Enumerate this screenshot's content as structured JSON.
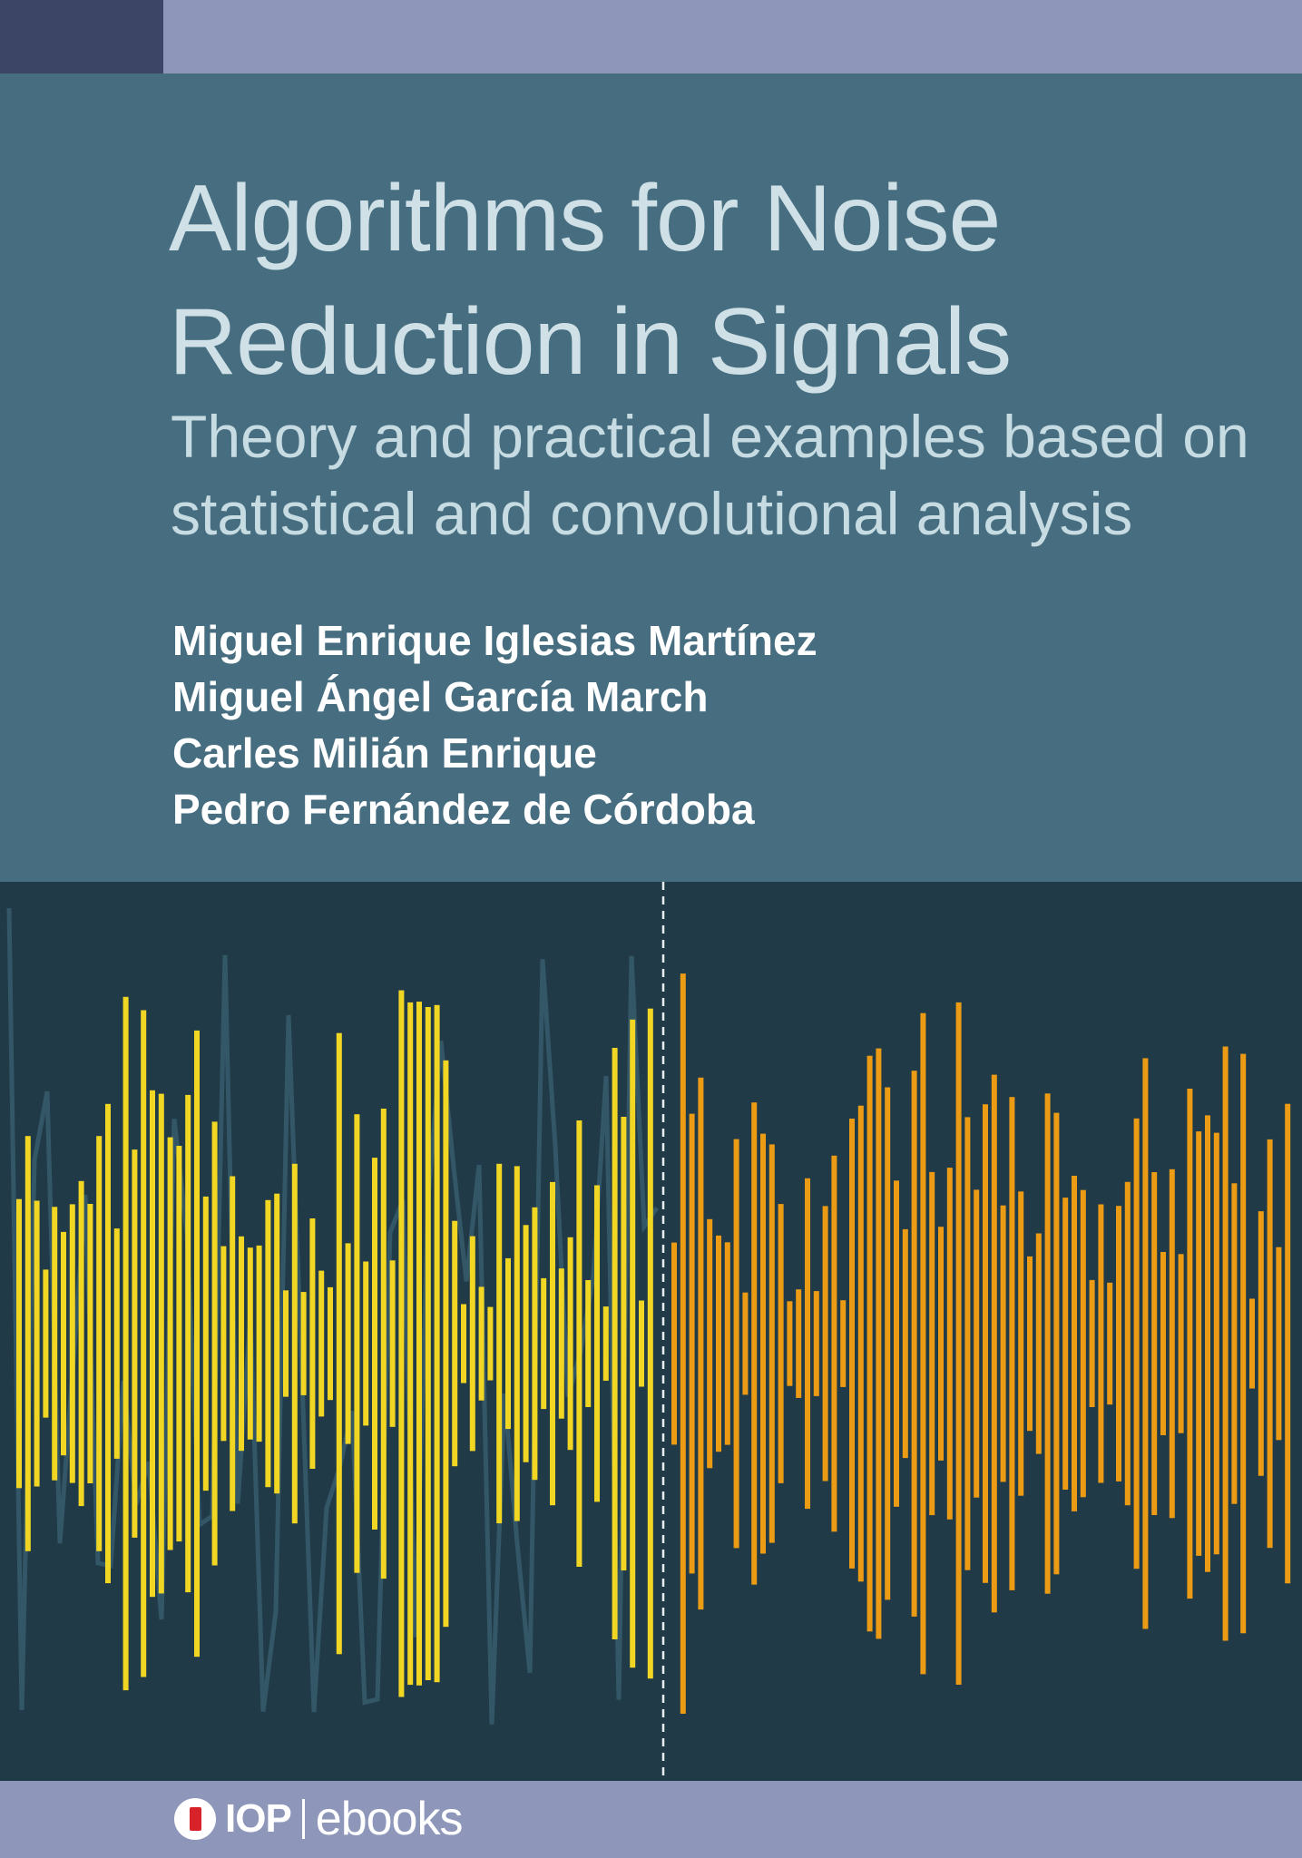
{
  "cover": {
    "title": [
      "Algorithms for Noise",
      "Reduction in Signals"
    ],
    "subtitle": [
      "Theory and practical examples based on",
      "statistical and convolutional analysis"
    ],
    "authors": [
      "Miguel Enrique Iglesias Martínez",
      "Miguel Ángel García March",
      "Carles Milián Enrique",
      "Pedro Fernández de Córdoba"
    ],
    "publisher": {
      "brand": "IOP",
      "product": "ebooks"
    }
  }
}
